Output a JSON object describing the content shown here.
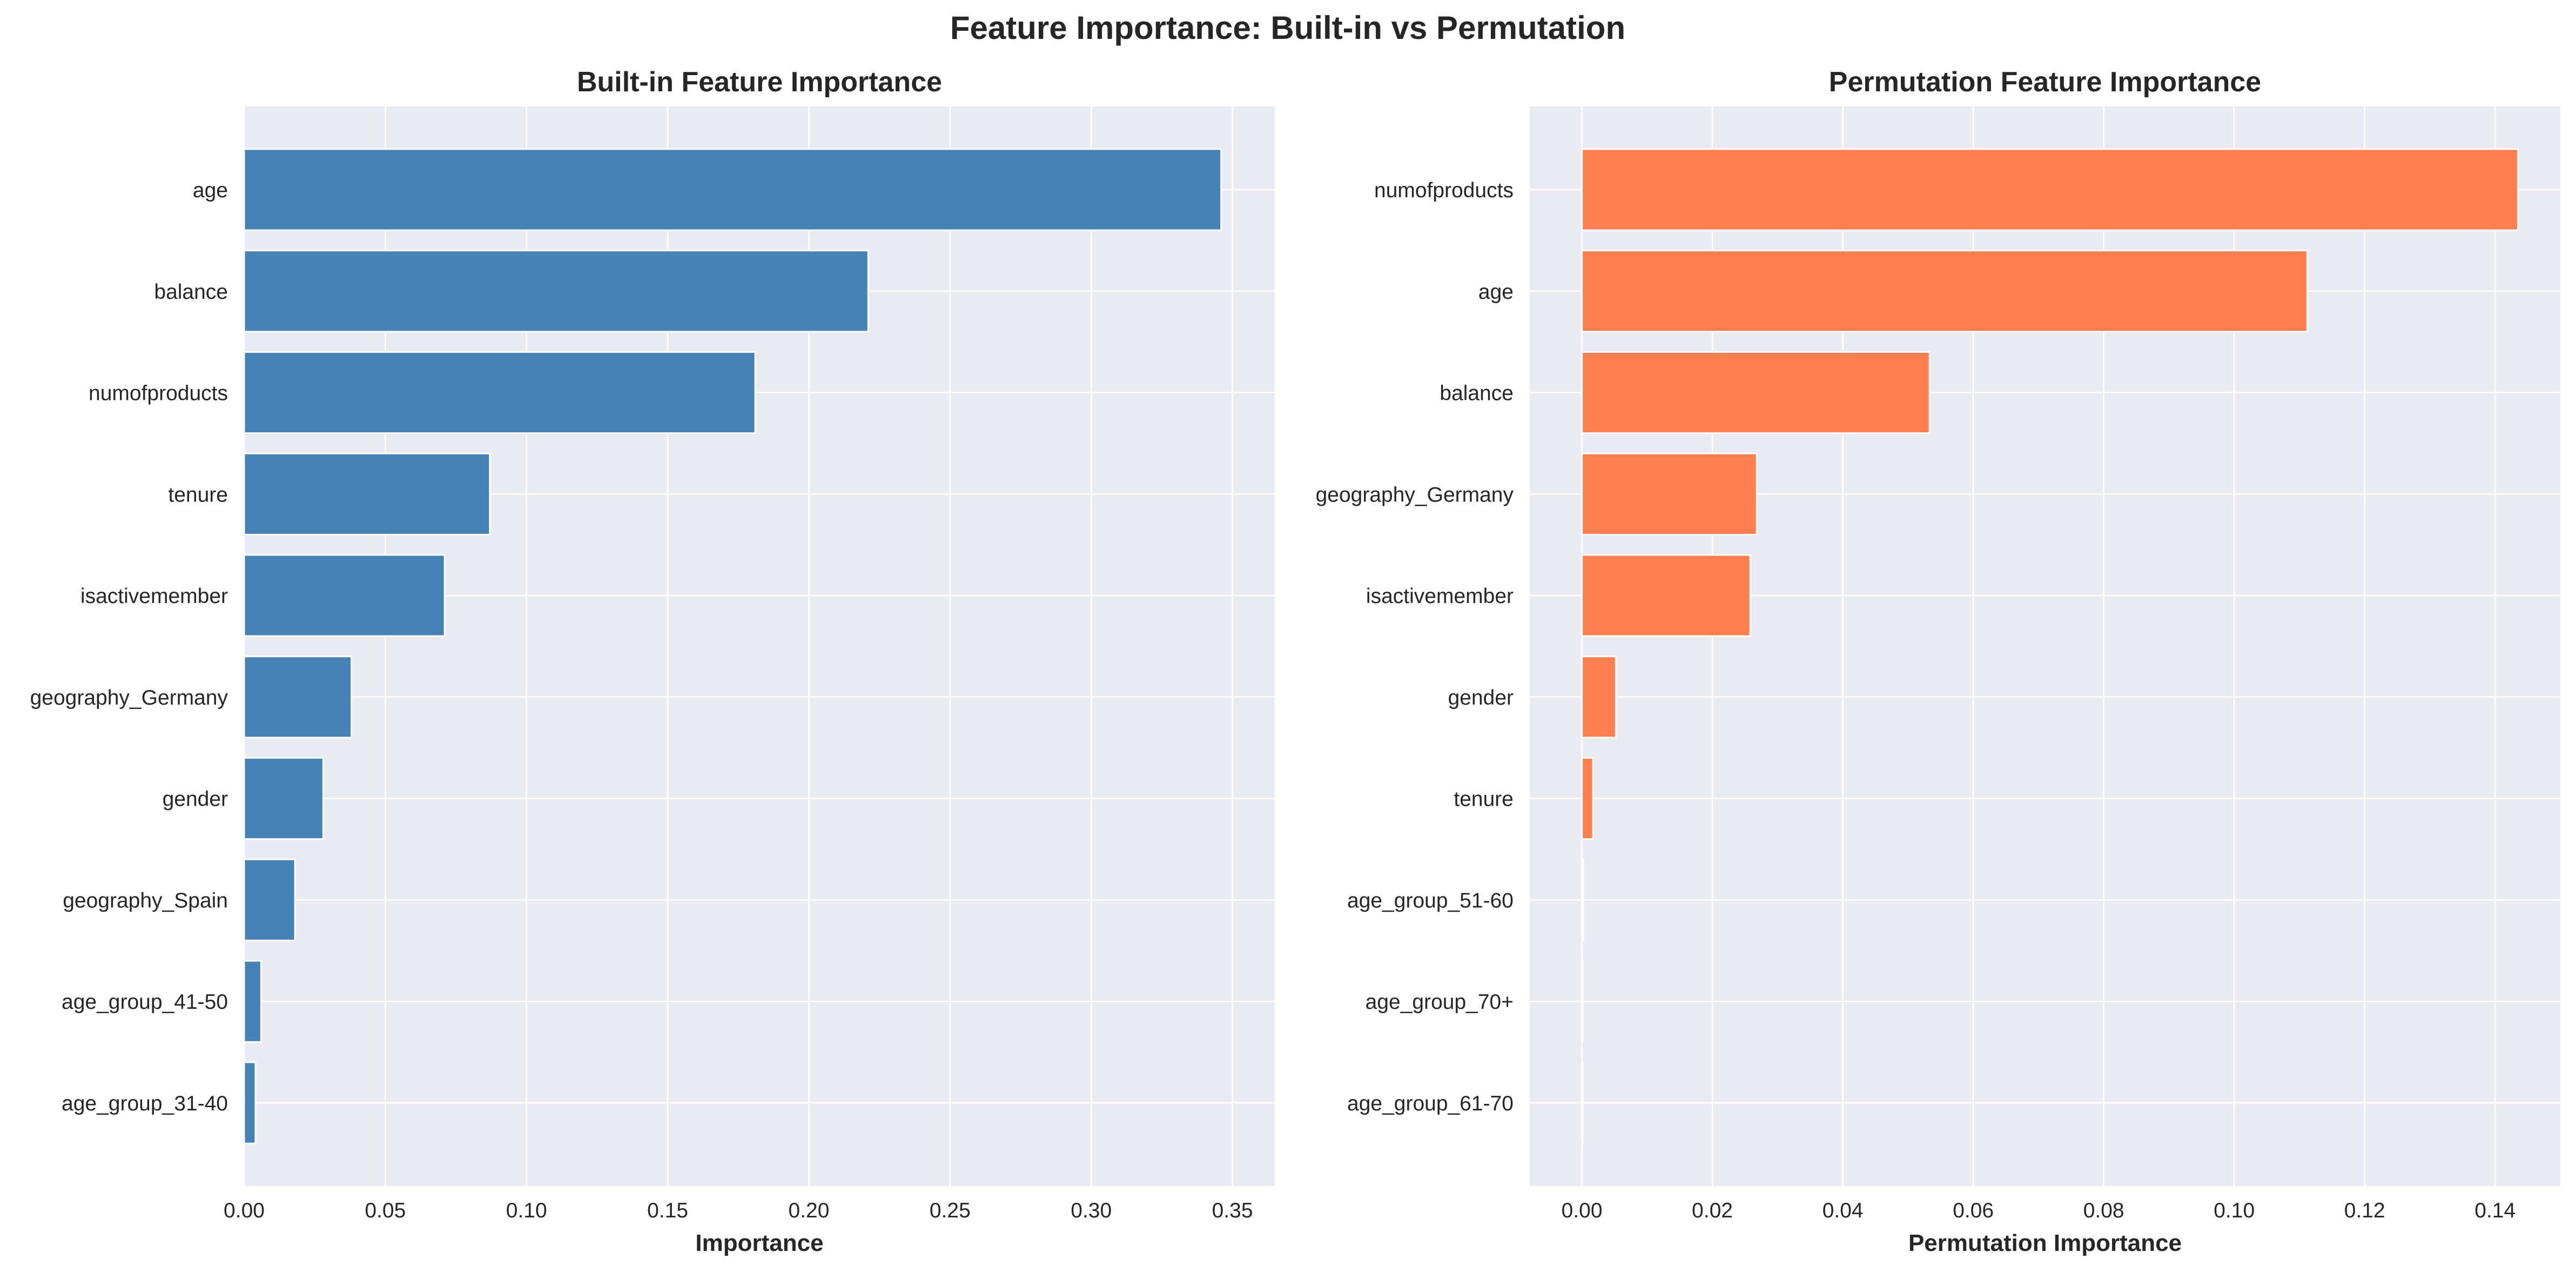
{
  "figure": {
    "title": "Feature Importance: Built-in vs Permutation",
    "background": "#ffffff",
    "plot_background": "#eaeaf2",
    "grid_color": "#ffffff",
    "text_color": "#262626"
  },
  "chart_data": [
    {
      "type": "bar",
      "orientation": "horizontal",
      "title": "Built-in Feature Importance",
      "xlabel": "Importance",
      "ylabel": "",
      "xlim": [
        0,
        0.365
      ],
      "xticks": [
        "0.00",
        "0.05",
        "0.10",
        "0.15",
        "0.20",
        "0.25",
        "0.30",
        "0.35"
      ],
      "xtick_values": [
        0,
        0.05,
        0.1,
        0.15,
        0.2,
        0.25,
        0.3,
        0.35
      ],
      "grid": true,
      "color": "#4682b4",
      "categories": [
        "age",
        "balance",
        "numofproducts",
        "tenure",
        "isactivemember",
        "geography_Germany",
        "gender",
        "geography_Spain",
        "age_group_41-50",
        "age_group_31-40"
      ],
      "values": [
        0.346,
        0.221,
        0.181,
        0.087,
        0.071,
        0.038,
        0.028,
        0.018,
        0.006,
        0.004
      ]
    },
    {
      "type": "bar",
      "orientation": "horizontal",
      "title": "Permutation Feature Importance",
      "xlabel": "Permutation Importance",
      "ylabel": "",
      "xlim": [
        -0.008,
        0.15
      ],
      "xticks": [
        "0.00",
        "0.02",
        "0.04",
        "0.06",
        "0.08",
        "0.10",
        "0.12",
        "0.14"
      ],
      "xtick_values": [
        0,
        0.02,
        0.04,
        0.06,
        0.08,
        0.1,
        0.12,
        0.14
      ],
      "grid": true,
      "color": "#ff7f50",
      "categories": [
        "numofproducts",
        "age",
        "balance",
        "geography_Germany",
        "isactivemember",
        "gender",
        "tenure",
        "age_group_51-60",
        "age_group_70+",
        "age_group_61-70"
      ],
      "values": [
        0.1435,
        0.1112,
        0.0533,
        0.0268,
        0.0258,
        0.0052,
        0.0017,
        0.0002,
        0.0001,
        0.0001
      ]
    }
  ]
}
